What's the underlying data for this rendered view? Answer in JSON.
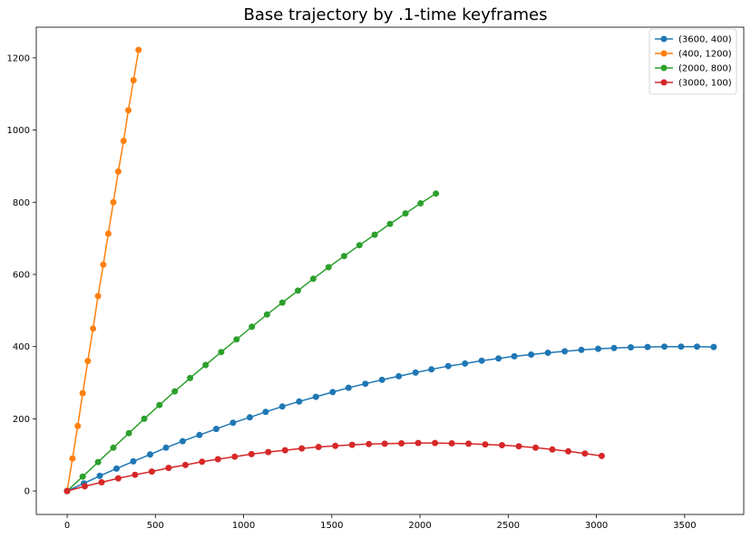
{
  "chart_data": {
    "type": "line",
    "title": "Base trajectory by .1-time keyframes",
    "xlabel": "",
    "ylabel": "",
    "xlim": [
      -175,
      3835
    ],
    "ylim": [
      -65,
      1285
    ],
    "xticks": [
      0,
      500,
      1000,
      1500,
      2000,
      2500,
      3000,
      3500
    ],
    "yticks": [
      0,
      200,
      400,
      600,
      800,
      1000,
      1200
    ],
    "grid": false,
    "legend_position": "top-right",
    "series": [
      {
        "name": "(3600, 400)",
        "color": "#1f77b4",
        "marker": "circle",
        "points": [
          [
            0,
            0
          ],
          [
            95,
            21
          ],
          [
            185,
            42
          ],
          [
            280,
            62
          ],
          [
            375,
            82
          ],
          [
            470,
            101
          ],
          [
            560,
            120
          ],
          [
            655,
            138
          ],
          [
            750,
            155
          ],
          [
            845,
            172
          ],
          [
            940,
            189
          ],
          [
            1035,
            204
          ],
          [
            1125,
            219
          ],
          [
            1220,
            234
          ],
          [
            1315,
            248
          ],
          [
            1410,
            261
          ],
          [
            1505,
            274
          ],
          [
            1595,
            286
          ],
          [
            1690,
            297
          ],
          [
            1785,
            308
          ],
          [
            1880,
            318
          ],
          [
            1975,
            328
          ],
          [
            2065,
            337
          ],
          [
            2160,
            346
          ],
          [
            2255,
            353
          ],
          [
            2350,
            361
          ],
          [
            2445,
            367
          ],
          [
            2535,
            373
          ],
          [
            2630,
            378
          ],
          [
            2725,
            383
          ],
          [
            2820,
            387
          ],
          [
            2915,
            391
          ],
          [
            3010,
            394
          ],
          [
            3100,
            396
          ],
          [
            3195,
            398
          ],
          [
            3290,
            399
          ],
          [
            3385,
            400
          ],
          [
            3480,
            400
          ],
          [
            3570,
            400
          ],
          [
            3665,
            399
          ]
        ]
      },
      {
        "name": "(400, 1200)",
        "color": "#ff7f0e",
        "marker": "circle",
        "points": [
          [
            0,
            0
          ],
          [
            30,
            90
          ],
          [
            60,
            180
          ],
          [
            88,
            271
          ],
          [
            117,
            360
          ],
          [
            147,
            450
          ],
          [
            175,
            540
          ],
          [
            205,
            627
          ],
          [
            233,
            713
          ],
          [
            262,
            800
          ],
          [
            290,
            885
          ],
          [
            320,
            970
          ],
          [
            347,
            1055
          ],
          [
            376,
            1138
          ],
          [
            405,
            1222
          ]
        ]
      },
      {
        "name": "(2000, 800)",
        "color": "#2ca02c",
        "marker": "circle",
        "points": [
          [
            0,
            0
          ],
          [
            88,
            40
          ],
          [
            175,
            80
          ],
          [
            262,
            120
          ],
          [
            350,
            160
          ],
          [
            437,
            200
          ],
          [
            523,
            238
          ],
          [
            610,
            276
          ],
          [
            697,
            313
          ],
          [
            785,
            349
          ],
          [
            873,
            385
          ],
          [
            960,
            420
          ],
          [
            1047,
            455
          ],
          [
            1133,
            489
          ],
          [
            1220,
            522
          ],
          [
            1308,
            555
          ],
          [
            1395,
            588
          ],
          [
            1482,
            620
          ],
          [
            1570,
            651
          ],
          [
            1657,
            681
          ],
          [
            1743,
            710
          ],
          [
            1830,
            740
          ],
          [
            1918,
            769
          ],
          [
            2003,
            797
          ],
          [
            2090,
            824
          ]
        ]
      },
      {
        "name": "(3000, 100)",
        "color": "#d62728",
        "marker": "circle",
        "points": [
          [
            0,
            0
          ],
          [
            100,
            13
          ],
          [
            195,
            24
          ],
          [
            290,
            35
          ],
          [
            385,
            45
          ],
          [
            480,
            54
          ],
          [
            575,
            64
          ],
          [
            670,
            72
          ],
          [
            765,
            81
          ],
          [
            855,
            88
          ],
          [
            950,
            95
          ],
          [
            1045,
            102
          ],
          [
            1140,
            108
          ],
          [
            1235,
            113
          ],
          [
            1330,
            118
          ],
          [
            1425,
            122
          ],
          [
            1520,
            125
          ],
          [
            1615,
            128
          ],
          [
            1710,
            130
          ],
          [
            1800,
            131
          ],
          [
            1895,
            132
          ],
          [
            1990,
            133
          ],
          [
            2085,
            133
          ],
          [
            2180,
            132
          ],
          [
            2275,
            131
          ],
          [
            2370,
            129
          ],
          [
            2465,
            127
          ],
          [
            2560,
            124
          ],
          [
            2655,
            120
          ],
          [
            2750,
            115
          ],
          [
            2840,
            110
          ],
          [
            2935,
            104
          ],
          [
            3030,
            97
          ]
        ]
      }
    ]
  }
}
